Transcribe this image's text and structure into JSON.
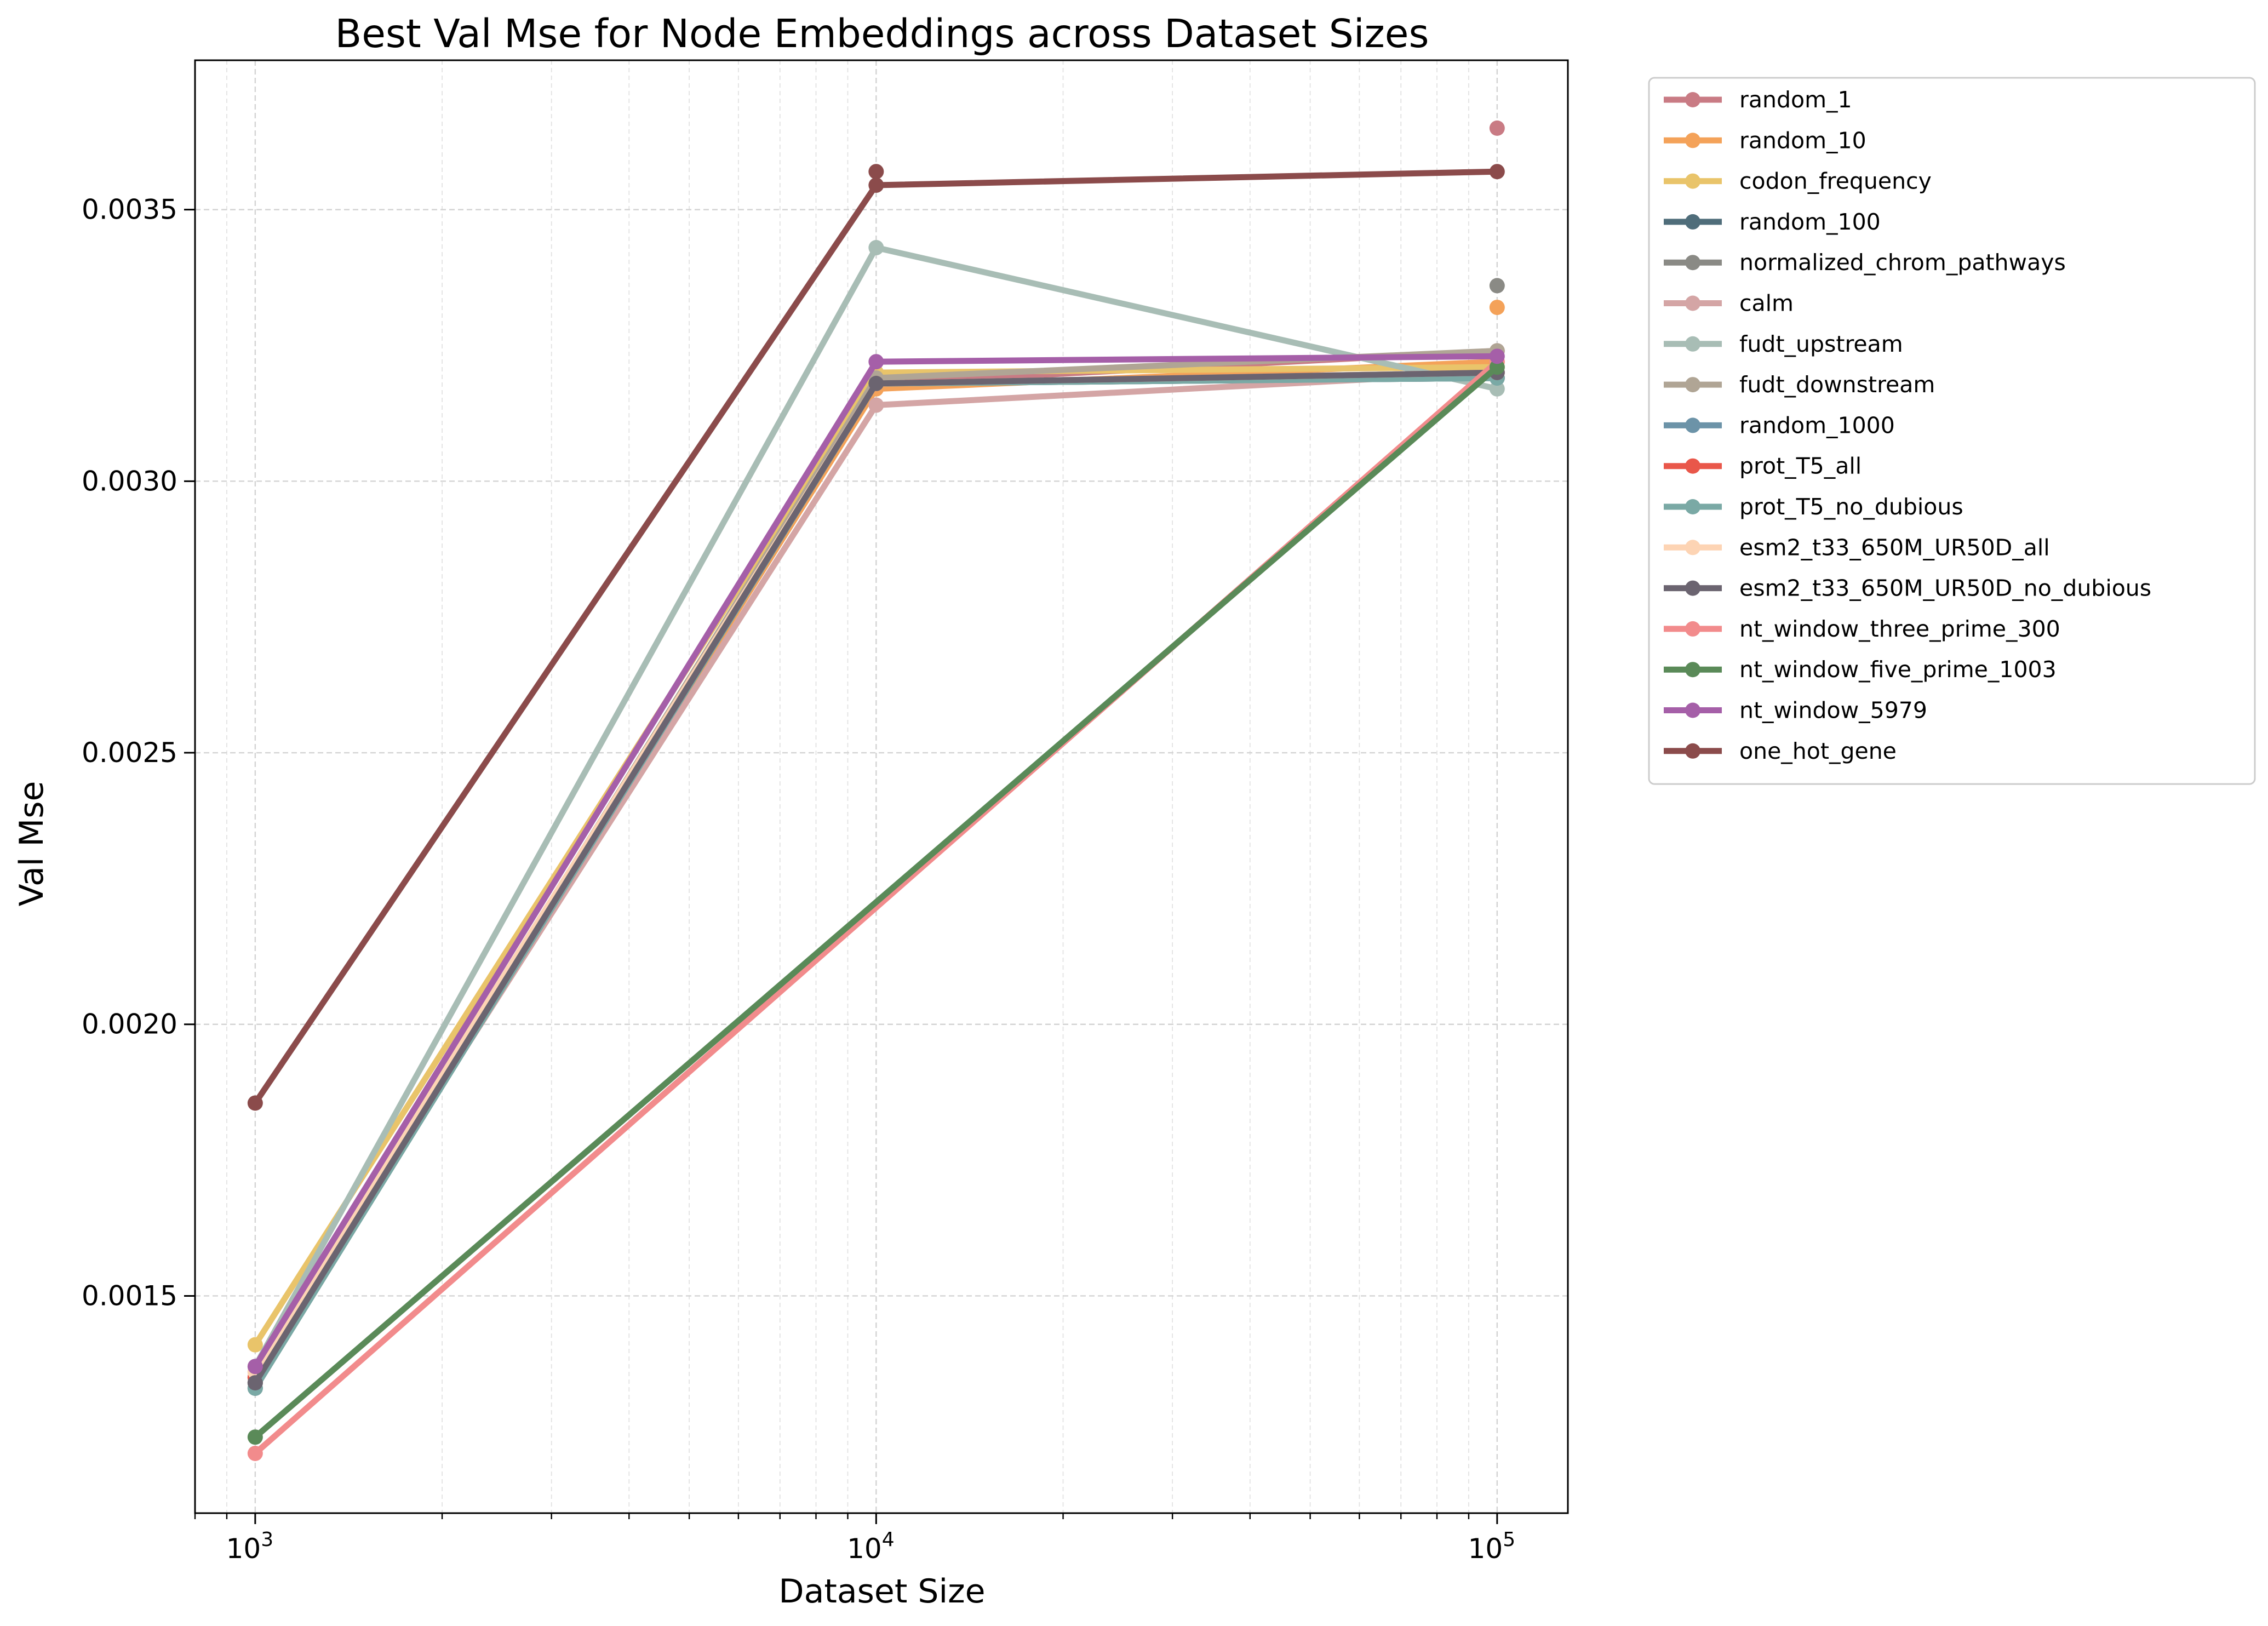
{
  "chart_data": {
    "type": "line",
    "title": "Best Val Mse for Node Embeddings across Dataset Sizes",
    "xlabel": "Dataset Size",
    "ylabel": "Val Mse",
    "xscale": "log",
    "xlim": [
      800,
      130000
    ],
    "ylim": [
      0.0011,
      0.003775
    ],
    "x": [
      1000,
      10000,
      100000
    ],
    "xticks": [
      1000,
      10000,
      100000
    ],
    "xtick_labels": [
      {
        "base": "10",
        "exp": "3"
      },
      {
        "base": "10",
        "exp": "4"
      },
      {
        "base": "10",
        "exp": "5"
      }
    ],
    "yticks": [
      0.0015,
      0.002,
      0.0025,
      0.003,
      0.0035
    ],
    "ytick_labels": [
      "0.0015",
      "0.0020",
      "0.0025",
      "0.0030",
      "0.0035"
    ],
    "grid": true,
    "legend_position": "outside-right",
    "series": [
      {
        "name": "random_1",
        "color": "#c97b84",
        "points": [
          [
            1000,
            0.00136
          ],
          [
            10000,
            0.00318
          ],
          [
            100000,
            0.00324
          ]
        ],
        "extra": [
          [
            100000,
            0.00365
          ]
        ]
      },
      {
        "name": "random_10",
        "color": "#f4a259",
        "points": [
          [
            1000,
            0.00134
          ],
          [
            10000,
            0.00317
          ],
          [
            100000,
            0.00322
          ]
        ],
        "extra": [
          [
            100000,
            0.00332
          ]
        ]
      },
      {
        "name": "codon_frequency",
        "color": "#e9c46a",
        "points": [
          [
            1000,
            0.00141
          ],
          [
            10000,
            0.0032
          ],
          [
            100000,
            0.00321
          ]
        ],
        "extra": []
      },
      {
        "name": "random_100",
        "color": "#4f6d7a",
        "points": [
          [
            1000,
            0.00133
          ],
          [
            10000,
            0.00318
          ],
          [
            100000,
            0.00319
          ]
        ],
        "extra": []
      },
      {
        "name": "normalized_chrom_pathways",
        "color": "#8a8a85",
        "points": [
          [
            1000,
            0.00134
          ],
          [
            10000,
            0.00318
          ],
          [
            100000,
            0.00319
          ]
        ],
        "extra": [
          [
            100000,
            0.00336
          ]
        ]
      },
      {
        "name": "calm",
        "color": "#d4a5a5",
        "points": [
          [
            1000,
            0.00135
          ],
          [
            10000,
            0.00314
          ],
          [
            100000,
            0.0032
          ]
        ],
        "extra": []
      },
      {
        "name": "fudt_upstream",
        "color": "#a8bdb5",
        "points": [
          [
            1000,
            0.00137
          ],
          [
            10000,
            0.00343
          ],
          [
            100000,
            0.00317
          ]
        ],
        "extra": []
      },
      {
        "name": "fudt_downstream",
        "color": "#b0a595",
        "points": [
          [
            1000,
            0.00135
          ],
          [
            10000,
            0.00319
          ],
          [
            100000,
            0.00324
          ]
        ],
        "extra": []
      },
      {
        "name": "random_1000",
        "color": "#6c93a8",
        "points": [
          [
            1000,
            0.00134
          ],
          [
            10000,
            0.00318
          ],
          [
            100000,
            0.00319
          ]
        ],
        "extra": []
      },
      {
        "name": "prot_T5_all",
        "color": "#e9574a",
        "points": [
          [
            1000,
            0.00135
          ],
          [
            10000,
            0.00318
          ],
          [
            100000,
            0.0032
          ]
        ],
        "extra": []
      },
      {
        "name": "prot_T5_no_dubious",
        "color": "#7aa9a5",
        "points": [
          [
            1000,
            0.00133
          ],
          [
            10000,
            0.00318
          ],
          [
            100000,
            0.00319
          ]
        ],
        "extra": []
      },
      {
        "name": "esm2_t33_650M_UR50D_all",
        "color": "#fdd4b4",
        "points": [
          [
            1000,
            0.00136
          ],
          [
            10000,
            0.00318
          ],
          [
            100000,
            0.0032
          ]
        ],
        "extra": []
      },
      {
        "name": "esm2_t33_650M_UR50D_no_dubious",
        "color": "#6b6470",
        "points": [
          [
            1000,
            0.00134
          ],
          [
            10000,
            0.00318
          ],
          [
            100000,
            0.0032
          ]
        ],
        "extra": []
      },
      {
        "name": "nt_window_three_prime_300",
        "color": "#f28b8c",
        "points": [
          [
            1000,
            0.00121
          ],
          [
            100000,
            0.00322
          ]
        ],
        "extra": []
      },
      {
        "name": "nt_window_five_prime_1003",
        "color": "#5a8a58",
        "points": [
          [
            1000,
            0.00124
          ],
          [
            100000,
            0.00321
          ]
        ],
        "extra": []
      },
      {
        "name": "nt_window_5979",
        "color": "#a55fa8",
        "points": [
          [
            1000,
            0.00137
          ],
          [
            10000,
            0.00322
          ],
          [
            100000,
            0.00323
          ]
        ],
        "extra": []
      },
      {
        "name": "one_hot_gene",
        "color": "#8b4b4b",
        "points": [
          [
            1000,
            0.001855
          ],
          [
            10000,
            0.003545
          ],
          [
            100000,
            0.00357
          ]
        ],
        "extra": [
          [
            10000,
            0.00357
          ]
        ]
      }
    ]
  }
}
